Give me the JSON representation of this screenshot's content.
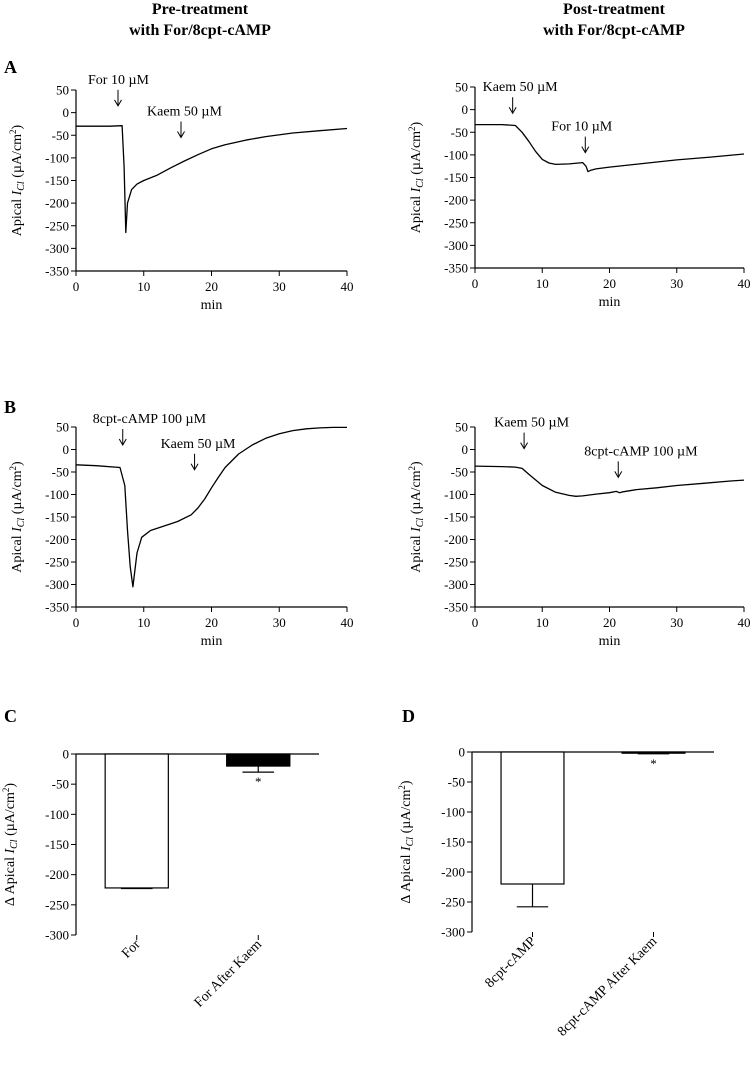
{
  "headers": {
    "left": [
      "Pre-treatment",
      "with For/8cpt-cAMP"
    ],
    "right": [
      "Post-treatment",
      "with For/8cpt-cAMP"
    ]
  },
  "chart_data": [
    {
      "id": "A-left",
      "type": "line",
      "panel_letter": "A",
      "xlabel": "min",
      "ylabel": "Apical I_Cl (µA/cm²)",
      "xlim": [
        0,
        40
      ],
      "ylim": [
        -350,
        50
      ],
      "xticks": [
        "0",
        "10",
        "20",
        "30",
        "40"
      ],
      "yticks": [
        "50",
        "0",
        "-50",
        "-100",
        "-150",
        "-200",
        "-250",
        "-300",
        "-350"
      ],
      "annotations": [
        {
          "label": "For 10 µM",
          "x": 6.2,
          "y_arrow": 15
        },
        {
          "label": "Kaem 50 µM",
          "x": 15.5,
          "y_arrow": -55
        }
      ],
      "series": [
        {
          "name": "trace",
          "x": [
            0,
            5,
            6.8,
            7.1,
            7.35,
            7.6,
            8.2,
            9,
            10,
            12,
            14,
            16,
            18,
            20,
            22,
            25,
            28,
            32,
            36,
            40
          ],
          "y": [
            -30,
            -30,
            -29,
            -120,
            -265,
            -200,
            -170,
            -158,
            -150,
            -138,
            -122,
            -107,
            -93,
            -80,
            -71,
            -61,
            -53,
            -45,
            -40,
            -35
          ]
        }
      ]
    },
    {
      "id": "A-right",
      "type": "line",
      "panel_letter": "",
      "xlabel": "min",
      "ylabel": "Apical I_Cl (µA/cm²)",
      "xlim": [
        0,
        40
      ],
      "ylim": [
        -350,
        50
      ],
      "xticks": [
        "0",
        "10",
        "20",
        "30",
        "40"
      ],
      "yticks": [
        "50",
        "0",
        "-50",
        "-100",
        "-150",
        "-200",
        "-250",
        "-300",
        "-350"
      ],
      "annotations": [
        {
          "label": "Kaem 50 µM",
          "x": 5.6,
          "y_arrow": -8
        },
        {
          "label": "For 10 µM",
          "x": 16.4,
          "y_arrow": -95
        }
      ],
      "series": [
        {
          "name": "trace",
          "x": [
            0,
            4,
            6,
            7,
            8,
            9,
            10,
            11,
            12,
            14,
            16,
            16.5,
            16.8,
            17.2,
            18,
            20,
            25,
            30,
            35,
            40
          ],
          "y": [
            -33,
            -33,
            -35,
            -50,
            -70,
            -92,
            -110,
            -118,
            -121,
            -120,
            -117,
            -125,
            -137,
            -134,
            -131,
            -127,
            -119,
            -111,
            -105,
            -98
          ]
        }
      ]
    },
    {
      "id": "B-left",
      "type": "line",
      "panel_letter": "B",
      "xlabel": "min",
      "ylabel": "Apical I_Cl (µA/cm²)",
      "xlim": [
        0,
        40
      ],
      "ylim": [
        -350,
        50
      ],
      "xticks": [
        "0",
        "10",
        "20",
        "30",
        "40"
      ],
      "yticks": [
        "50",
        "0",
        "-50",
        "-100",
        "-150",
        "-200",
        "-250",
        "-300",
        "-350"
      ],
      "annotations": [
        {
          "label": "8cpt-cAMP 100 µM",
          "x": 6.9,
          "y_arrow": 10
        },
        {
          "label": "Kaem 50 µM",
          "x": 17.5,
          "y_arrow": -45
        }
      ],
      "series": [
        {
          "name": "trace",
          "x": [
            0,
            3,
            6.5,
            7.2,
            7.6,
            8,
            8.4,
            9,
            9.7,
            11,
            13,
            15,
            17,
            18,
            19,
            20,
            21,
            22,
            24,
            26,
            28,
            30,
            32,
            34,
            36,
            38,
            40
          ],
          "y": [
            -34,
            -36,
            -40,
            -80,
            -180,
            -260,
            -305,
            -230,
            -195,
            -180,
            -170,
            -160,
            -145,
            -130,
            -110,
            -85,
            -62,
            -40,
            -10,
            10,
            25,
            35,
            42,
            46,
            48,
            49,
            49
          ]
        }
      ]
    },
    {
      "id": "B-right",
      "type": "line",
      "panel_letter": "",
      "xlabel": "min",
      "ylabel": "Apical I_Cl (µA/cm²)",
      "xlim": [
        0,
        40
      ],
      "ylim": [
        -350,
        50
      ],
      "xticks": [
        "0",
        "10",
        "20",
        "30",
        "40"
      ],
      "yticks": [
        "50",
        "0",
        "-50",
        "-100",
        "-150",
        "-200",
        "-250",
        "-300",
        "-350"
      ],
      "annotations": [
        {
          "label": "Kaem 50 µM",
          "x": 7.3,
          "y_arrow": 2
        },
        {
          "label": "8cpt-cAMP 100 µM",
          "x": 21.3,
          "y_arrow": -62
        }
      ],
      "series": [
        {
          "name": "trace",
          "x": [
            0,
            4,
            6,
            7,
            8,
            10,
            12,
            14,
            15,
            16,
            18,
            20,
            21,
            21.5,
            22,
            24,
            27,
            30,
            34,
            38,
            40
          ],
          "y": [
            -37,
            -38,
            -39,
            -42,
            -55,
            -80,
            -95,
            -102,
            -104,
            -103,
            -99,
            -96,
            -93,
            -96,
            -94,
            -89,
            -85,
            -80,
            -75,
            -70,
            -68
          ]
        }
      ]
    },
    {
      "id": "C",
      "type": "bar",
      "panel_letter": "C",
      "ylabel": "Δ Apical I_Cl (µA/cm²)",
      "ylim": [
        -300,
        0
      ],
      "yticks": [
        "0",
        "-50",
        "-100",
        "-150",
        "-200",
        "-250",
        "-300"
      ],
      "categories": [
        "For",
        "For After Kaem"
      ],
      "values": [
        -222,
        -20
      ],
      "errors": [
        1,
        10
      ],
      "fills": [
        "#ffffff",
        "#000000"
      ],
      "significance": [
        "",
        "*"
      ]
    },
    {
      "id": "D",
      "type": "bar",
      "panel_letter": "D",
      "ylabel": "Δ Apical I_Cl (µA/cm²)",
      "ylim": [
        -300,
        0
      ],
      "yticks": [
        "0",
        "-50",
        "-100",
        "-150",
        "-200",
        "-250",
        "-300"
      ],
      "categories": [
        "8cpt-cAMP",
        "8cpt-cAMP After Kaem"
      ],
      "values": [
        -220,
        -2
      ],
      "errors": [
        38,
        1
      ],
      "fills": [
        "#ffffff",
        "#000000"
      ],
      "significance": [
        "",
        "*"
      ]
    }
  ]
}
